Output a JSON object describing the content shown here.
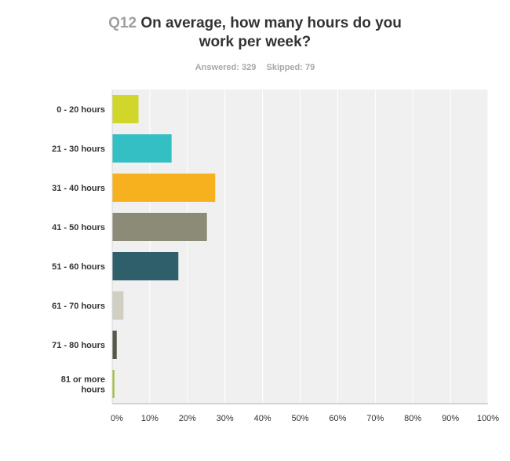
{
  "header": {
    "question_number": "Q12",
    "question_line1": "On average, how many hours do you",
    "question_line2": "work per week?",
    "answered": "Answered: 329",
    "skipped": "Skipped: 79"
  },
  "colors": {
    "plot_background": "#f0f0f0",
    "gridline": "#ffffff",
    "axis": "#b0b0b0"
  },
  "chart_data": {
    "type": "bar",
    "orientation": "horizontal",
    "title": "On average, how many hours do you work per week?",
    "categories": [
      [
        "0 - 20 hours"
      ],
      [
        "21 - 30 hours"
      ],
      [
        "31 - 40 hours"
      ],
      [
        "41 - 50 hours"
      ],
      [
        "51 - 60 hours"
      ],
      [
        "61 - 70 hours"
      ],
      [
        "71 - 80 hours"
      ],
      [
        "81 or more",
        "hours"
      ]
    ],
    "values": [
      7.0,
      15.8,
      27.4,
      25.2,
      17.6,
      3.0,
      1.2,
      0.6
    ],
    "bar_colors": [
      "#d1d62b",
      "#34bfc4",
      "#f7b11e",
      "#8b8b78",
      "#2e5f6b",
      "#d1cfc2",
      "#555a4b",
      "#a4c23a"
    ],
    "xlim": [
      0,
      100
    ],
    "xticks": [
      "0%",
      "10%",
      "20%",
      "30%",
      "40%",
      "50%",
      "60%",
      "70%",
      "80%",
      "90%",
      "100%"
    ],
    "grid": true,
    "legend": "none"
  }
}
